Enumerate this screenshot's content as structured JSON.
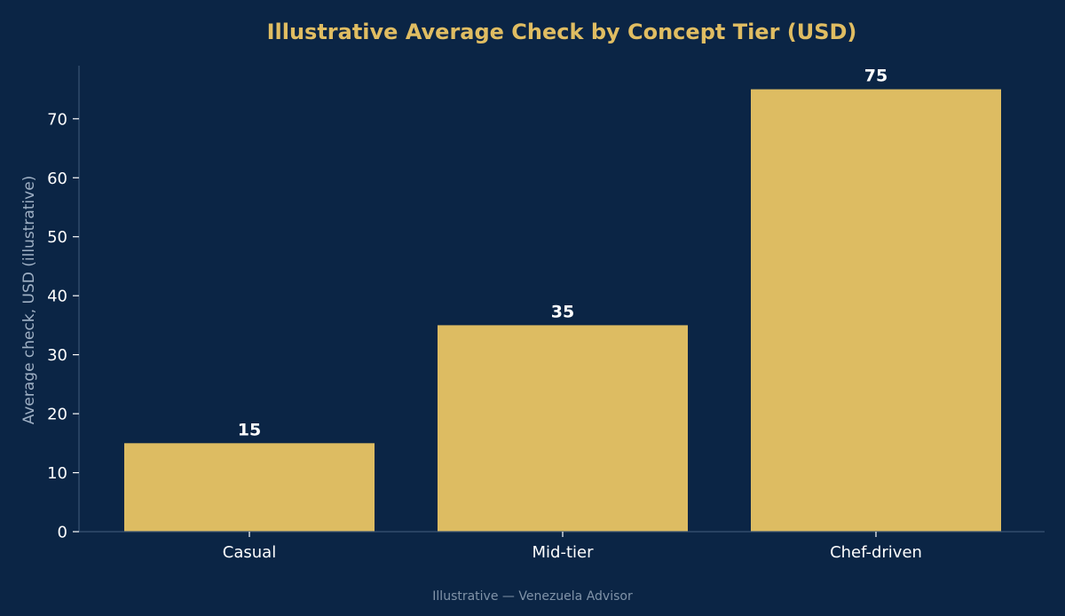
{
  "colors": {
    "background": "#0b2545",
    "title": "#e0bd62",
    "bar": "#ddbc62",
    "axis": "#3a5474",
    "tick_label": "#ffffff",
    "ylabel": "#9fb0c4",
    "value_label": "#ffffff",
    "footer": "#8093a8"
  },
  "chart_data": {
    "type": "bar",
    "title": "Illustrative Average Check by Concept Tier (USD)",
    "xlabel": "",
    "ylabel": "Average check, USD (illustrative)",
    "categories": [
      "Casual",
      "Mid-tier",
      "Chef-driven"
    ],
    "values": [
      15,
      35,
      75
    ],
    "value_labels": [
      "15",
      "35",
      "75"
    ],
    "ylim": [
      0,
      79
    ],
    "yticks": [
      0,
      10,
      20,
      30,
      40,
      50,
      60,
      70
    ],
    "grid": false,
    "legend": "none"
  },
  "footer": {
    "text": "Illustrative — Venezuela Advisor"
  }
}
